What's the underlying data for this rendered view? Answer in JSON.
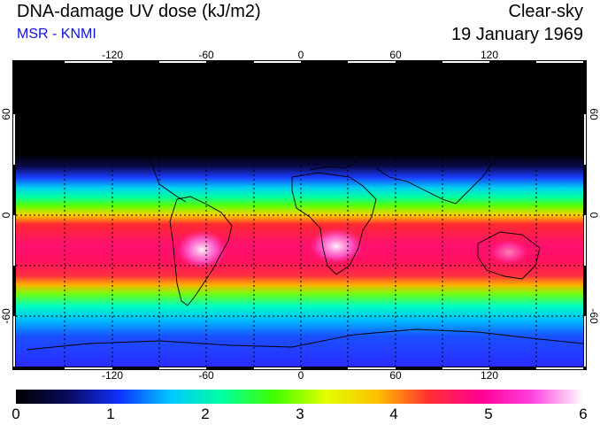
{
  "header": {
    "title": "DNA-damage UV dose (kJ/m2)",
    "source": "MSR - KNMI",
    "condition": "Clear-sky",
    "date": "19 January 1969"
  },
  "map": {
    "lon_ticks": [
      "-120",
      "-60",
      "0",
      "60",
      "120"
    ],
    "lat_ticks": [
      "60",
      "0",
      "-60"
    ]
  },
  "colorbar": {
    "labels": [
      "0",
      "1",
      "2",
      "3",
      "4",
      "5",
      "6"
    ],
    "stops": [
      "#000000",
      "#0a0a5a",
      "#1030ff",
      "#00c8ff",
      "#00ffa0",
      "#40ff00",
      "#e0ff00",
      "#ffc000",
      "#ff3030",
      "#ff0090",
      "#ff40e0",
      "#ffffff"
    ]
  },
  "colors": {
    "subtitle": "#1010e0"
  }
}
